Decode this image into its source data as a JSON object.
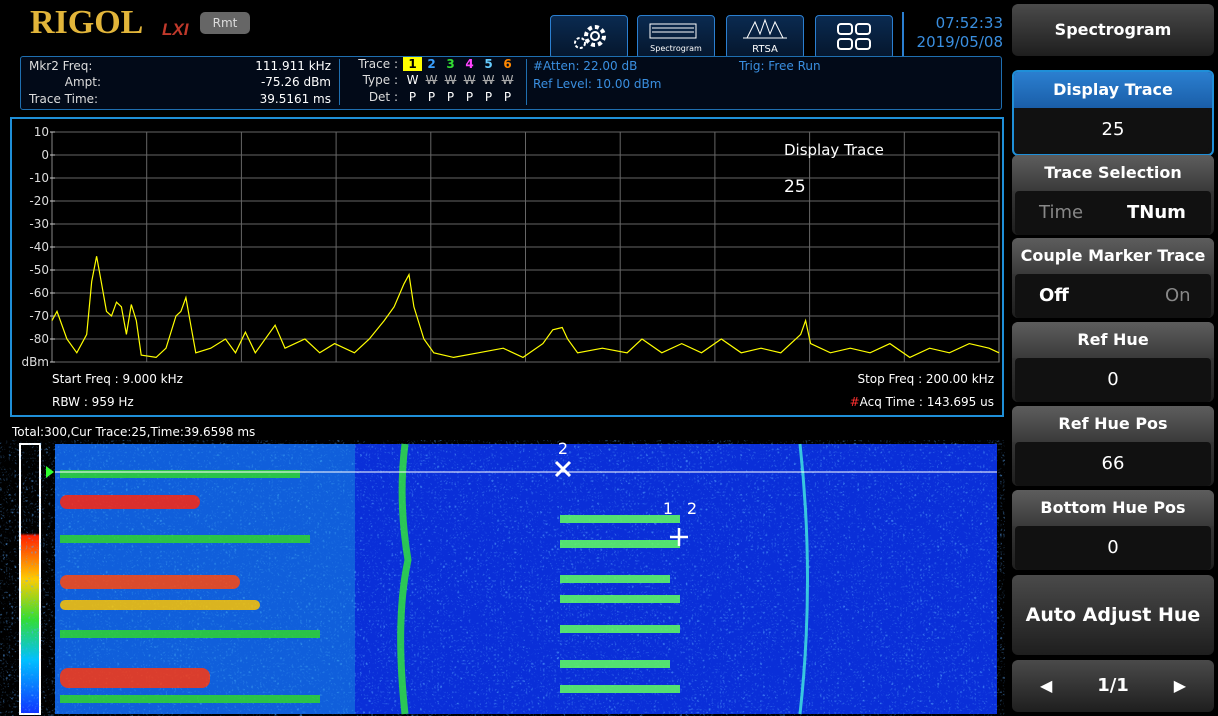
{
  "header": {
    "logo": "RIGOL",
    "lxi": "LXI",
    "remote": "Rmt",
    "spectrogram_icon": "Spectrogram",
    "rtsa_icon": "RTSA",
    "time": "07:52:33",
    "date": "2019/05/08"
  },
  "status": {
    "marker_freq_label": "Mkr2 Freq:",
    "marker_freq": "111.911 kHz",
    "ampt_label": "Ampt:",
    "ampt": "-75.26 dBm",
    "trace_time_label": "Trace Time:",
    "trace_time": "39.5161 ms",
    "trace_label": "Trace :",
    "traces": [
      {
        "label": "1",
        "color": "#ffff00"
      },
      {
        "label": "2",
        "color": "#3aa0ff"
      },
      {
        "label": "3",
        "color": "#33dd33"
      },
      {
        "label": "4",
        "color": "#ff44ff"
      },
      {
        "label": "5",
        "color": "#66ccff"
      },
      {
        "label": "6",
        "color": "#ff8800"
      }
    ],
    "type_label": "Type :",
    "types": [
      "W",
      "W",
      "W",
      "W",
      "W",
      "W"
    ],
    "det_label": "Det :",
    "dets": [
      "P",
      "P",
      "P",
      "P",
      "P",
      "P"
    ],
    "atten": "#Atten: 22.00 dB",
    "ref_level": "Ref Level: 10.00 dBm",
    "trigger": "Trig: Free Run"
  },
  "spectrum": {
    "type": "line",
    "color": "#ffff00",
    "xlim": [
      9,
      200
    ],
    "ylim": [
      -90,
      10
    ],
    "yticks": [
      10,
      0,
      -10,
      -20,
      -30,
      -40,
      -50,
      -60,
      -70,
      -80,
      {
        "value": -90,
        "label": "dBm"
      }
    ],
    "x": [
      9,
      10,
      12,
      14,
      16,
      17,
      18,
      19,
      20,
      21,
      22,
      23,
      24,
      25,
      26,
      27,
      30,
      32,
      34,
      35,
      36,
      37,
      38,
      41,
      44,
      46,
      48,
      50,
      54,
      56,
      60,
      63,
      66,
      70,
      73,
      76,
      78,
      80,
      81,
      82,
      84,
      86,
      90,
      95,
      100,
      104,
      108,
      110,
      111.9,
      113,
      115,
      120,
      125,
      128,
      132,
      136,
      140,
      144,
      148,
      152,
      156,
      160,
      161,
      162,
      166,
      170,
      174,
      178,
      182,
      186,
      190,
      194,
      198,
      200
    ],
    "values": [
      -72,
      -68,
      -80,
      -86,
      -78,
      -55,
      -44,
      -56,
      -68,
      -70,
      -64,
      -66,
      -78,
      -65,
      -72,
      -87,
      -88,
      -84,
      -70,
      -68,
      -62,
      -74,
      -86,
      -84,
      -80,
      -86,
      -77,
      -86,
      -74,
      -84,
      -80,
      -86,
      -82,
      -86,
      -80,
      -72,
      -66,
      -56,
      -52,
      -66,
      -80,
      -86,
      -88,
      -86,
      -84,
      -88,
      -82,
      -76,
      -75,
      -80,
      -86,
      -84,
      -86,
      -80,
      -86,
      -82,
      -86,
      -80,
      -86,
      -84,
      -86,
      -78,
      -72,
      -82,
      -86,
      -84,
      -86,
      -82,
      -88,
      -84,
      -86,
      -82,
      -84,
      -86
    ],
    "overlay_title": "Display Trace",
    "overlay_value": "25",
    "start_freq": "Start Freq : 9.000 kHz",
    "stop_freq": "Stop Freq : 200.00 kHz",
    "rbw": "RBW : 959 Hz",
    "acq_flag": "#",
    "acq_time": "Acq Time : 143.695 us"
  },
  "spectrogram": {
    "info": "Total:300,Cur Trace:25,Time:39.6598 ms",
    "marker_top": "2",
    "marker_a": "1",
    "marker_b": "2"
  },
  "menu": {
    "title": "Spectrogram",
    "display_trace": "Display Trace",
    "display_trace_value": "25",
    "trace_selection": "Trace Selection",
    "time": "Time",
    "tnum": "TNum",
    "couple": "Couple Marker Trace",
    "off": "Off",
    "on": "On",
    "ref_hue": "Ref Hue",
    "ref_hue_value": "0",
    "ref_hue_pos": "Ref Hue Pos",
    "ref_hue_pos_value": "66",
    "bottom_hue_pos": "Bottom Hue Pos",
    "bottom_hue_pos_value": "0",
    "auto_adjust": "Auto Adjust Hue",
    "page": "1/1"
  }
}
